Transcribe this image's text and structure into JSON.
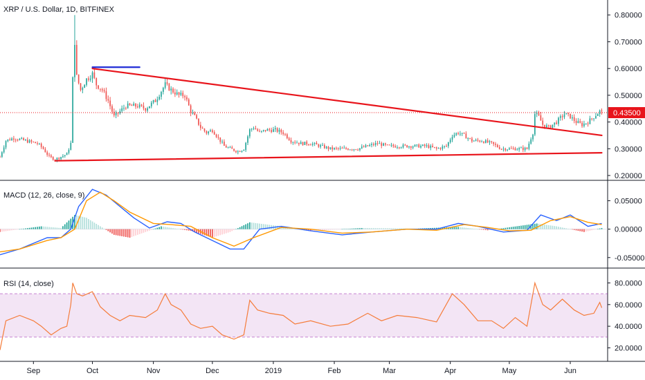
{
  "colors": {
    "up": "#26a69a",
    "down": "#ef5350",
    "trendline": "#e8141b",
    "hline": "#1e2ad6",
    "macd_line": "#2962ff",
    "signal_line": "#ff9800",
    "hist_up_strong": "#26a69a",
    "hist_up_weak": "#b2dfdb",
    "hist_down_strong": "#ef5350",
    "hist_down_weak": "#ffcdd2",
    "rsi_line": "#f57c3a",
    "rsi_band": "#9c27b0",
    "last_price": "#e8141b",
    "separator": "#131722",
    "grid": "#e0e3eb"
  },
  "chart_data": [
    {
      "type": "candlestick",
      "title": "XRP / U.S. Dollar, 1D, BITFINEX",
      "ylim": [
        0.2,
        0.82
      ],
      "y_ticks": [
        "0.80000",
        "0.70000",
        "0.60000",
        "0.50000",
        "0.40000",
        "0.30000",
        "0.20000"
      ],
      "y_tick_values": [
        0.8,
        0.7,
        0.6,
        0.5,
        0.4,
        0.3,
        0.2
      ],
      "last_price_label": "0.43500",
      "last_price": 0.435,
      "x_range": [
        "2018-08-15",
        "2019-06-20"
      ],
      "x_ticks": [
        {
          "label": "Sep",
          "date": "2018-09-01"
        },
        {
          "label": "Oct",
          "date": "2018-10-01"
        },
        {
          "label": "Nov",
          "date": "2018-11-01"
        },
        {
          "label": "Dec",
          "date": "2018-12-01"
        },
        {
          "label": "2019",
          "date": "2019-01-01"
        },
        {
          "label": "Feb",
          "date": "2019-02-01"
        },
        {
          "label": "Mar",
          "date": "2019-03-01"
        },
        {
          "label": "Apr",
          "date": "2019-04-01"
        },
        {
          "label": "May",
          "date": "2019-05-01"
        },
        {
          "label": "Jun",
          "date": "2019-06-01"
        }
      ],
      "close_path": [
        [
          "2018-08-15",
          0.27
        ],
        [
          "2018-08-18",
          0.33
        ],
        [
          "2018-08-22",
          0.34
        ],
        [
          "2018-08-28",
          0.33
        ],
        [
          "2018-09-03",
          0.32
        ],
        [
          "2018-09-06",
          0.3
        ],
        [
          "2018-09-09",
          0.27
        ],
        [
          "2018-09-12",
          0.26
        ],
        [
          "2018-09-15",
          0.27
        ],
        [
          "2018-09-18",
          0.28
        ],
        [
          "2018-09-20",
          0.32
        ],
        [
          "2018-09-21",
          0.56
        ],
        [
          "2018-09-22",
          0.7
        ],
        [
          "2018-09-23",
          0.57
        ],
        [
          "2018-09-25",
          0.52
        ],
        [
          "2018-09-28",
          0.56
        ],
        [
          "2018-10-01",
          0.58
        ],
        [
          "2018-10-03",
          0.54
        ],
        [
          "2018-10-06",
          0.52
        ],
        [
          "2018-10-09",
          0.48
        ],
        [
          "2018-10-12",
          0.42
        ],
        [
          "2018-10-15",
          0.44
        ],
        [
          "2018-10-18",
          0.46
        ],
        [
          "2018-10-24",
          0.46
        ],
        [
          "2018-10-28",
          0.45
        ],
        [
          "2018-11-02",
          0.48
        ],
        [
          "2018-11-07",
          0.54
        ],
        [
          "2018-11-10",
          0.52
        ],
        [
          "2018-11-14",
          0.5
        ],
        [
          "2018-11-17",
          0.5
        ],
        [
          "2018-11-20",
          0.44
        ],
        [
          "2018-11-22",
          0.42
        ],
        [
          "2018-11-25",
          0.38
        ],
        [
          "2018-11-28",
          0.36
        ],
        [
          "2018-12-01",
          0.37
        ],
        [
          "2018-12-04",
          0.34
        ],
        [
          "2018-12-07",
          0.31
        ],
        [
          "2018-12-10",
          0.3
        ],
        [
          "2018-12-14",
          0.29
        ],
        [
          "2018-12-17",
          0.3
        ],
        [
          "2018-12-20",
          0.37
        ],
        [
          "2018-12-22",
          0.38
        ],
        [
          "2018-12-25",
          0.36
        ],
        [
          "2018-12-28",
          0.37
        ],
        [
          "2019-01-02",
          0.37
        ],
        [
          "2019-01-06",
          0.36
        ],
        [
          "2019-01-10",
          0.33
        ],
        [
          "2019-01-15",
          0.32
        ],
        [
          "2019-01-20",
          0.32
        ],
        [
          "2019-01-25",
          0.31
        ],
        [
          "2019-01-30",
          0.3
        ],
        [
          "2019-02-03",
          0.3
        ],
        [
          "2019-02-08",
          0.3
        ],
        [
          "2019-02-13",
          0.3
        ],
        [
          "2019-02-18",
          0.31
        ],
        [
          "2019-02-23",
          0.32
        ],
        [
          "2019-02-28",
          0.31
        ],
        [
          "2019-03-05",
          0.31
        ],
        [
          "2019-03-10",
          0.31
        ],
        [
          "2019-03-15",
          0.31
        ],
        [
          "2019-03-20",
          0.31
        ],
        [
          "2019-03-25",
          0.3
        ],
        [
          "2019-03-30",
          0.31
        ],
        [
          "2019-04-02",
          0.35
        ],
        [
          "2019-04-05",
          0.36
        ],
        [
          "2019-04-08",
          0.35
        ],
        [
          "2019-04-12",
          0.33
        ],
        [
          "2019-04-17",
          0.33
        ],
        [
          "2019-04-22",
          0.32
        ],
        [
          "2019-04-27",
          0.3
        ],
        [
          "2019-05-01",
          0.3
        ],
        [
          "2019-05-06",
          0.3
        ],
        [
          "2019-05-10",
          0.3
        ],
        [
          "2019-05-13",
          0.36
        ],
        [
          "2019-05-14",
          0.43
        ],
        [
          "2019-05-16",
          0.42
        ],
        [
          "2019-05-18",
          0.39
        ],
        [
          "2019-05-21",
          0.38
        ],
        [
          "2019-05-25",
          0.4
        ],
        [
          "2019-05-29",
          0.43
        ],
        [
          "2019-06-01",
          0.42
        ],
        [
          "2019-06-04",
          0.4
        ],
        [
          "2019-06-07",
          0.39
        ],
        [
          "2019-06-10",
          0.4
        ],
        [
          "2019-06-13",
          0.42
        ],
        [
          "2019-06-16",
          0.44
        ],
        [
          "2019-06-17",
          0.435
        ]
      ],
      "lines": [
        {
          "name": "descending trendline",
          "from": [
            "2018-10-01",
            0.6
          ],
          "to": [
            "2019-06-17",
            0.35
          ]
        },
        {
          "name": "ascending support",
          "from": [
            "2018-09-12",
            0.255
          ],
          "to": [
            "2019-06-17",
            0.285
          ]
        },
        {
          "name": "horizontal",
          "from": [
            "2018-10-01",
            0.605
          ],
          "to": [
            "2018-10-25",
            0.605
          ]
        }
      ]
    },
    {
      "type": "line",
      "title": "MACD (12, 26, close, 9)",
      "ylim": [
        -0.06,
        0.075
      ],
      "y_ticks": [
        "0.05000",
        "0.00000",
        "-0.05000"
      ],
      "y_tick_values": [
        0.05,
        0,
        -0.05
      ],
      "series": [
        {
          "name": "MACD",
          "color": "#2962ff",
          "values": [
            [
              "2018-08-15",
              -0.045
            ],
            [
              "2018-08-25",
              -0.035
            ],
            [
              "2018-09-08",
              -0.015
            ],
            [
              "2018-09-15",
              -0.015
            ],
            [
              "2018-09-20",
              0.0
            ],
            [
              "2018-09-24",
              0.04
            ],
            [
              "2018-10-01",
              0.07
            ],
            [
              "2018-10-08",
              0.06
            ],
            [
              "2018-10-15",
              0.04
            ],
            [
              "2018-10-22",
              0.02
            ],
            [
              "2018-10-30",
              0.002
            ],
            [
              "2018-11-08",
              0.013
            ],
            [
              "2018-11-15",
              0.01
            ],
            [
              "2018-11-22",
              -0.005
            ],
            [
              "2018-12-01",
              -0.02
            ],
            [
              "2018-12-10",
              -0.035
            ],
            [
              "2018-12-17",
              -0.035
            ],
            [
              "2018-12-25",
              0.0
            ],
            [
              "2019-01-05",
              0.005
            ],
            [
              "2019-01-20",
              -0.003
            ],
            [
              "2019-02-05",
              -0.01
            ],
            [
              "2019-02-20",
              -0.005
            ],
            [
              "2019-03-10",
              0.0
            ],
            [
              "2019-03-25",
              0.0
            ],
            [
              "2019-04-05",
              0.01
            ],
            [
              "2019-04-15",
              0.005
            ],
            [
              "2019-04-28",
              -0.005
            ],
            [
              "2019-05-10",
              -0.002
            ],
            [
              "2019-05-17",
              0.025
            ],
            [
              "2019-05-25",
              0.015
            ],
            [
              "2019-06-01",
              0.025
            ],
            [
              "2019-06-10",
              0.005
            ],
            [
              "2019-06-17",
              0.01
            ]
          ]
        },
        {
          "name": "Signal",
          "color": "#ff9800",
          "values": [
            [
              "2018-08-15",
              -0.04
            ],
            [
              "2018-08-25",
              -0.035
            ],
            [
              "2018-09-08",
              -0.02
            ],
            [
              "2018-09-15",
              -0.015
            ],
            [
              "2018-09-22",
              0.0
            ],
            [
              "2018-09-28",
              0.05
            ],
            [
              "2018-10-05",
              0.065
            ],
            [
              "2018-10-12",
              0.05
            ],
            [
              "2018-10-20",
              0.03
            ],
            [
              "2018-11-01",
              0.01
            ],
            [
              "2018-11-10",
              0.008
            ],
            [
              "2018-11-20",
              0.005
            ],
            [
              "2018-12-01",
              -0.015
            ],
            [
              "2018-12-12",
              -0.03
            ],
            [
              "2018-12-22",
              -0.015
            ],
            [
              "2019-01-05",
              0.003
            ],
            [
              "2019-01-20",
              0.0
            ],
            [
              "2019-02-05",
              -0.007
            ],
            [
              "2019-02-20",
              -0.005
            ],
            [
              "2019-03-10",
              0.0
            ],
            [
              "2019-03-25",
              -0.002
            ],
            [
              "2019-04-08",
              0.008
            ],
            [
              "2019-04-20",
              0.003
            ],
            [
              "2019-05-01",
              -0.003
            ],
            [
              "2019-05-12",
              -0.002
            ],
            [
              "2019-05-22",
              0.015
            ],
            [
              "2019-06-01",
              0.022
            ],
            [
              "2019-06-10",
              0.012
            ],
            [
              "2019-06-17",
              0.008
            ]
          ]
        }
      ],
      "histogram": [
        [
          "2018-08-15",
          -0.005
        ],
        [
          "2018-08-25",
          0.0
        ],
        [
          "2018-09-05",
          0.005
        ],
        [
          "2018-09-15",
          0.002
        ],
        [
          "2018-09-22",
          0.025
        ],
        [
          "2018-09-28",
          0.02
        ],
        [
          "2018-10-05",
          0.005
        ],
        [
          "2018-10-12",
          -0.01
        ],
        [
          "2018-10-20",
          -0.015
        ],
        [
          "2018-11-05",
          0.005
        ],
        [
          "2018-11-20",
          -0.003
        ],
        [
          "2018-12-01",
          -0.015
        ],
        [
          "2018-12-10",
          -0.005
        ],
        [
          "2018-12-20",
          0.012
        ],
        [
          "2019-01-05",
          0.005
        ],
        [
          "2019-01-20",
          -0.003
        ],
        [
          "2019-02-15",
          0.002
        ],
        [
          "2019-03-15",
          0.001
        ],
        [
          "2019-04-05",
          0.004
        ],
        [
          "2019-04-20",
          -0.002
        ],
        [
          "2019-05-15",
          0.01
        ],
        [
          "2019-05-25",
          0.005
        ],
        [
          "2019-06-08",
          -0.005
        ],
        [
          "2019-06-17",
          0.002
        ]
      ]
    },
    {
      "type": "line",
      "title": "RSI (14, close)",
      "ylim": [
        12,
        88
      ],
      "y_ticks": [
        "80.0000",
        "60.0000",
        "40.0000",
        "20.0000"
      ],
      "y_tick_values": [
        80,
        60,
        40,
        20
      ],
      "band": [
        30,
        70
      ],
      "series": [
        {
          "name": "RSI",
          "color": "#f57c3a",
          "values": [
            [
              "2018-08-15",
              18
            ],
            [
              "2018-08-18",
              45
            ],
            [
              "2018-08-25",
              50
            ],
            [
              "2018-09-01",
              45
            ],
            [
              "2018-09-05",
              40
            ],
            [
              "2018-09-10",
              32
            ],
            [
              "2018-09-15",
              38
            ],
            [
              "2018-09-18",
              40
            ],
            [
              "2018-09-20",
              60
            ],
            [
              "2018-09-21",
              80
            ],
            [
              "2018-09-23",
              70
            ],
            [
              "2018-09-26",
              68
            ],
            [
              "2018-10-01",
              72
            ],
            [
              "2018-10-05",
              58
            ],
            [
              "2018-10-10",
              50
            ],
            [
              "2018-10-15",
              45
            ],
            [
              "2018-10-20",
              50
            ],
            [
              "2018-10-28",
              48
            ],
            [
              "2018-11-03",
              55
            ],
            [
              "2018-11-07",
              70
            ],
            [
              "2018-11-10",
              60
            ],
            [
              "2018-11-15",
              55
            ],
            [
              "2018-11-20",
              42
            ],
            [
              "2018-11-25",
              38
            ],
            [
              "2018-12-01",
              40
            ],
            [
              "2018-12-06",
              32
            ],
            [
              "2018-12-12",
              28
            ],
            [
              "2018-12-17",
              32
            ],
            [
              "2018-12-20",
              64
            ],
            [
              "2018-12-24",
              55
            ],
            [
              "2018-12-30",
              52
            ],
            [
              "2019-01-06",
              50
            ],
            [
              "2019-01-12",
              42
            ],
            [
              "2019-01-20",
              45
            ],
            [
              "2019-01-30",
              40
            ],
            [
              "2019-02-08",
              42
            ],
            [
              "2019-02-18",
              52
            ],
            [
              "2019-02-25",
              45
            ],
            [
              "2019-03-05",
              50
            ],
            [
              "2019-03-15",
              48
            ],
            [
              "2019-03-25",
              44
            ],
            [
              "2019-04-02",
              70
            ],
            [
              "2019-04-08",
              60
            ],
            [
              "2019-04-15",
              45
            ],
            [
              "2019-04-22",
              45
            ],
            [
              "2019-04-28",
              38
            ],
            [
              "2019-05-04",
              48
            ],
            [
              "2019-05-10",
              40
            ],
            [
              "2019-05-14",
              80
            ],
            [
              "2019-05-18",
              60
            ],
            [
              "2019-05-22",
              55
            ],
            [
              "2019-05-28",
              65
            ],
            [
              "2019-06-03",
              55
            ],
            [
              "2019-06-08",
              50
            ],
            [
              "2019-06-13",
              52
            ],
            [
              "2019-06-16",
              62
            ],
            [
              "2019-06-17",
              57
            ]
          ]
        }
      ]
    }
  ]
}
